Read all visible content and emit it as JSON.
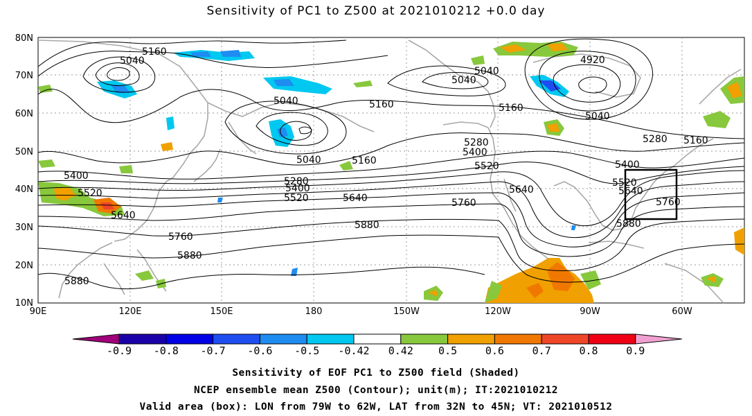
{
  "title": "Sensitivity of PC1 to Z500 at 2021010212 +0.0 day",
  "lat_labels": [
    "80N",
    "70N",
    "60N",
    "50N",
    "40N",
    "30N",
    "20N",
    "10N"
  ],
  "lon_labels": [
    "90E",
    "120E",
    "150E",
    "180",
    "150W",
    "120W",
    "90W",
    "60W"
  ],
  "contour_labels": [
    "5160",
    "5040",
    "5040",
    "5160",
    "5040",
    "5040",
    "5160",
    "4920",
    "5040",
    "5280",
    "5400",
    "5520",
    "5280",
    "5160",
    "5040",
    "5160",
    "5400",
    "5400",
    "5520",
    "5640",
    "5520",
    "5400",
    "5280",
    "5520",
    "5640",
    "5640",
    "5760",
    "5640",
    "5880",
    "5760",
    "5880",
    "5880",
    "5760",
    "5880",
    "5640",
    "5520"
  ],
  "colorbar": {
    "labels": [
      "-0.9",
      "-0.8",
      "-0.7",
      "-0.6",
      "-0.5",
      "-0.42",
      "0.42",
      "0.5",
      "0.6",
      "0.7",
      "0.8",
      "0.9"
    ],
    "colors": [
      "#a0007a",
      "#1a00a8",
      "#0000e6",
      "#1e4ef0",
      "#1e8cf0",
      "#00c8f0",
      "#ffffff",
      "#88c83c",
      "#f0a000",
      "#f07800",
      "#f04628",
      "#f00014",
      "#f0a0d0"
    ]
  },
  "box": {
    "lon_from": "79W",
    "lon_to": "62W",
    "lat_from": "32N",
    "lat_to": "45N"
  },
  "footer": {
    "line1": "Sensitivity of EOF PC1 to Z500 field (Shaded)",
    "line2": "NCEP ensemble mean Z500 (Contour); unit(m); IT:2021010212",
    "line3": "Valid area (box): LON from 79W to 62W, LAT from 32N to 45N; VT: 2021010512"
  }
}
